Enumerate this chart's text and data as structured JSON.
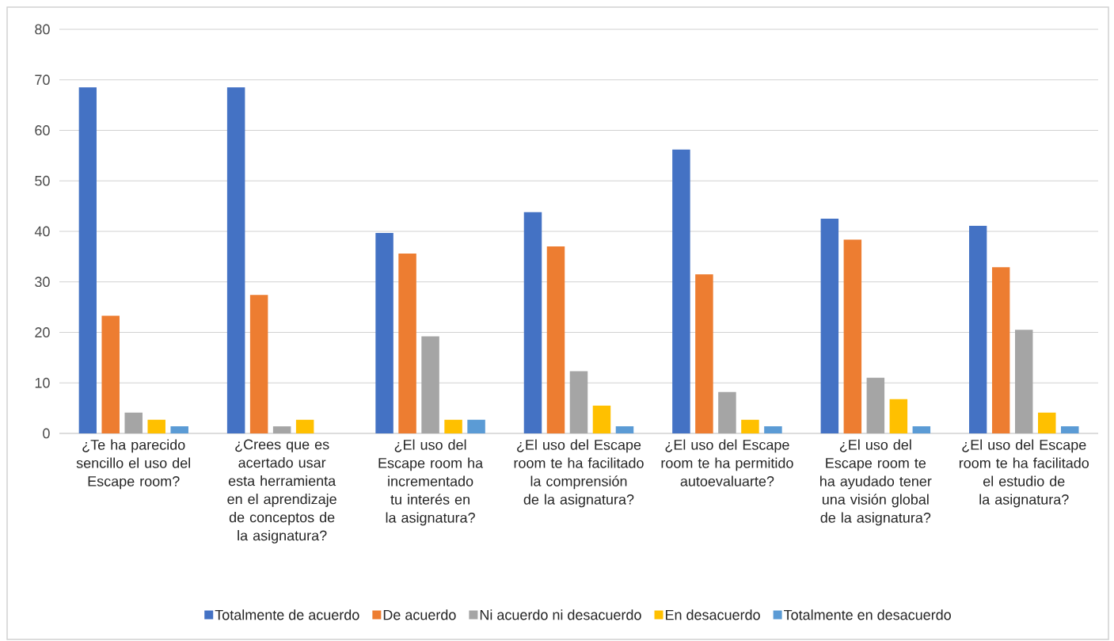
{
  "chart_data": {
    "type": "bar",
    "categories": [
      "¿Te ha parecido sencillo el uso del Escape room?",
      "¿Crees que es acertado usar esta herramienta en el aprendizaje de conceptos de la asignatura?",
      "¿El uso del Escape room ha incrementado tu interés en la asignatura?",
      "¿El uso del Escape room te ha facilitado la comprensión de la asignatura?",
      "¿El uso del Escape room te ha permitido autoevaluarte?",
      "¿El uso del Escape room te ha ayudado tener una visión global de la asignatura?",
      "¿El uso del Escape room te ha facilitado el estudio de la asignatura?"
    ],
    "series": [
      {
        "name": "Totalmente de acuerdo",
        "color": "#4472c4",
        "values": [
          68.5,
          68.5,
          39.7,
          43.8,
          56.2,
          42.5,
          41.1
        ]
      },
      {
        "name": "De acuerdo",
        "color": "#ed7d31",
        "values": [
          23.3,
          27.4,
          35.6,
          37.0,
          31.5,
          38.4,
          32.9
        ]
      },
      {
        "name": "Ni acuerdo ni desacuerdo",
        "color": "#a5a5a5",
        "values": [
          4.1,
          1.4,
          19.2,
          12.3,
          8.2,
          11.0,
          20.5
        ]
      },
      {
        "name": "En desacuerdo",
        "color": "#ffc000",
        "values": [
          2.7,
          2.7,
          2.7,
          5.5,
          2.7,
          6.8,
          4.1
        ]
      },
      {
        "name": "Totalmente en desacuerdo",
        "color": "#5b9bd5",
        "values": [
          1.4,
          null,
          2.7,
          1.4,
          1.4,
          1.4,
          1.4
        ]
      }
    ],
    "ylim": [
      0,
      80
    ],
    "yticks": [
      0,
      10,
      20,
      30,
      40,
      50,
      60,
      70,
      80
    ],
    "grid": "y",
    "legend": "bottom"
  }
}
